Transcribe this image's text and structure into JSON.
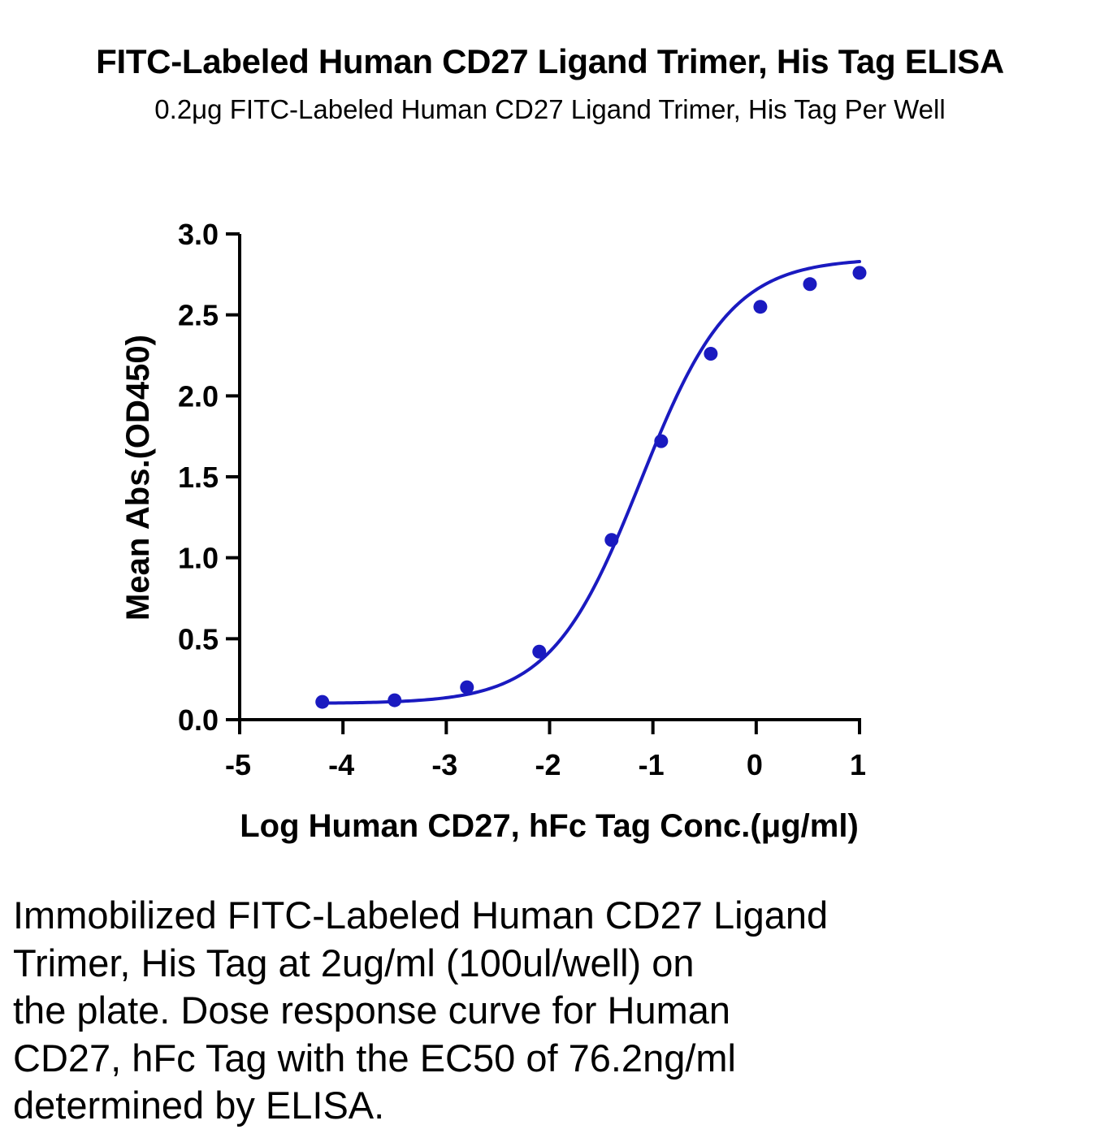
{
  "chart_data": {
    "type": "line",
    "title": "FITC-Labeled Human CD27 Ligand Trimer, His Tag ELISA",
    "subtitle": "0.2μg FITC-Labeled Human CD27 Ligand Trimer, His Tag Per Well",
    "xlabel": "Log Human CD27, hFc Tag Conc.(μg/ml)",
    "ylabel": "Mean Abs.(OD450)",
    "xlim": [
      -5,
      1
    ],
    "ylim": [
      0,
      3.0
    ],
    "x_ticks": [
      -5,
      -4,
      -3,
      -2,
      -1,
      0,
      1
    ],
    "x_tick_labels": [
      "-5",
      "-4",
      "-3",
      "-2",
      "-1",
      "0",
      "1"
    ],
    "y_ticks": [
      0,
      0.5,
      1.0,
      1.5,
      2.0,
      2.5,
      3.0
    ],
    "y_tick_labels": [
      "0.0",
      "0.5",
      "1.0",
      "1.5",
      "2.0",
      "2.5",
      "3.0"
    ],
    "grid": false,
    "legend": "none",
    "series": [
      {
        "x": [
          -4.2,
          -3.5,
          -2.8,
          -2.1,
          -1.4,
          -0.92,
          -0.44,
          0.04,
          0.52,
          1.0
        ],
        "y": [
          0.11,
          0.12,
          0.2,
          0.42,
          1.11,
          1.72,
          2.26,
          2.55,
          2.69,
          2.76
        ],
        "color": "#1a1ac0",
        "fit": "sigmoidal four-parameter logistic"
      }
    ],
    "fit_params": {
      "bottom": 0.1,
      "top": 2.85,
      "logEC50": -1.118,
      "hill": 1.0
    }
  },
  "caption_lines": [
    "Immobilized FITC-Labeled Human CD27 Ligand",
    "Trimer, His Tag at 2ug/ml (100ul/well) on",
    "the plate. Dose response curve for Human",
    "CD27, hFc Tag with the EC50 of 76.2ng/ml",
    "determined by ELISA."
  ]
}
